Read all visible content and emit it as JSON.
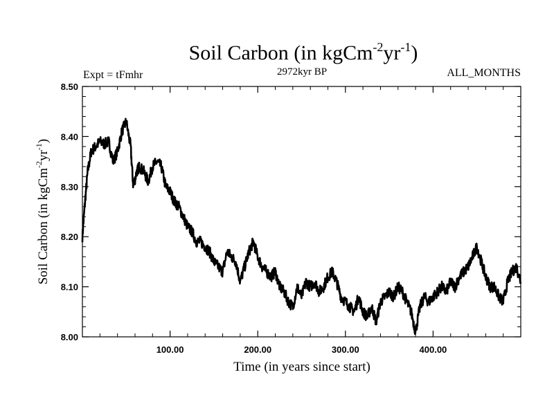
{
  "header": {
    "title_main": "Soil Carbon (in kgCm",
    "title_sup1": "-2",
    "title_mid": "yr",
    "title_sup2": "-1",
    "title_end": ")",
    "subtitle": "2972kyr BP",
    "left_label": "Expt = tFmhr",
    "right_label": "ALL_MONTHS"
  },
  "axes": {
    "xlabel": "Time (in years since start)",
    "ylabel_main": "Soil Carbon (in kgCm",
    "ylabel_sup1": "-2",
    "ylabel_mid": "yr",
    "ylabel_sup2": "-1",
    "ylabel_end": ")"
  },
  "chart_data": {
    "type": "line",
    "title": "Soil Carbon (in kgCm-2yr-1)",
    "subtitle": "2972kyr BP",
    "xlabel": "Time (in years since start)",
    "ylabel": "Soil Carbon (in kgCm-2yr-1)",
    "xlim": [
      0,
      500
    ],
    "ylim": [
      8.0,
      8.5
    ],
    "x_ticks": [
      100,
      200,
      300,
      400
    ],
    "x_tick_labels": [
      "100.00",
      "200.00",
      "300.00",
      "400.00"
    ],
    "y_ticks": [
      8.0,
      8.1,
      8.2,
      8.3,
      8.4,
      8.5
    ],
    "y_tick_labels": [
      "8.00",
      "8.10",
      "8.20",
      "8.30",
      "8.40",
      "8.50"
    ],
    "grid": false,
    "series": [
      {
        "color": "#000000",
        "x": [
          0,
          3,
          6,
          10,
          15,
          20,
          25,
          30,
          35,
          40,
          45,
          50,
          55,
          58,
          62,
          65,
          70,
          75,
          80,
          85,
          90,
          95,
          100,
          105,
          110,
          115,
          120,
          125,
          130,
          135,
          140,
          145,
          150,
          155,
          160,
          165,
          170,
          175,
          180,
          185,
          190,
          195,
          200,
          205,
          210,
          215,
          220,
          225,
          230,
          235,
          240,
          245,
          250,
          255,
          260,
          265,
          270,
          275,
          280,
          285,
          290,
          295,
          300,
          305,
          310,
          315,
          320,
          325,
          330,
          335,
          340,
          345,
          350,
          355,
          360,
          365,
          370,
          375,
          380,
          385,
          390,
          395,
          400,
          405,
          410,
          415,
          420,
          425,
          430,
          435,
          440,
          445,
          450,
          455,
          460,
          465,
          470,
          475,
          480,
          485,
          490,
          495,
          500
        ],
        "y": [
          8.2,
          8.27,
          8.33,
          8.37,
          8.38,
          8.39,
          8.385,
          8.39,
          8.35,
          8.37,
          8.41,
          8.43,
          8.38,
          8.3,
          8.33,
          8.34,
          8.33,
          8.31,
          8.34,
          8.35,
          8.34,
          8.3,
          8.29,
          8.27,
          8.26,
          8.24,
          8.22,
          8.21,
          8.19,
          8.19,
          8.18,
          8.17,
          8.15,
          8.14,
          8.13,
          8.17,
          8.16,
          8.15,
          8.11,
          8.14,
          8.17,
          8.19,
          8.16,
          8.14,
          8.13,
          8.12,
          8.13,
          8.1,
          8.09,
          8.07,
          8.06,
          8.1,
          8.08,
          8.11,
          8.1,
          8.11,
          8.09,
          8.1,
          8.12,
          8.13,
          8.11,
          8.08,
          8.07,
          8.06,
          8.05,
          8.08,
          8.05,
          8.04,
          8.06,
          8.03,
          8.07,
          8.08,
          8.09,
          8.08,
          8.1,
          8.09,
          8.07,
          8.05,
          8.01,
          8.06,
          8.08,
          8.07,
          8.08,
          8.09,
          8.1,
          8.09,
          8.11,
          8.1,
          8.12,
          8.13,
          8.14,
          8.16,
          8.18,
          8.15,
          8.12,
          8.1,
          8.1,
          8.08,
          8.07,
          8.11,
          8.13,
          8.14,
          8.11
        ]
      }
    ]
  }
}
